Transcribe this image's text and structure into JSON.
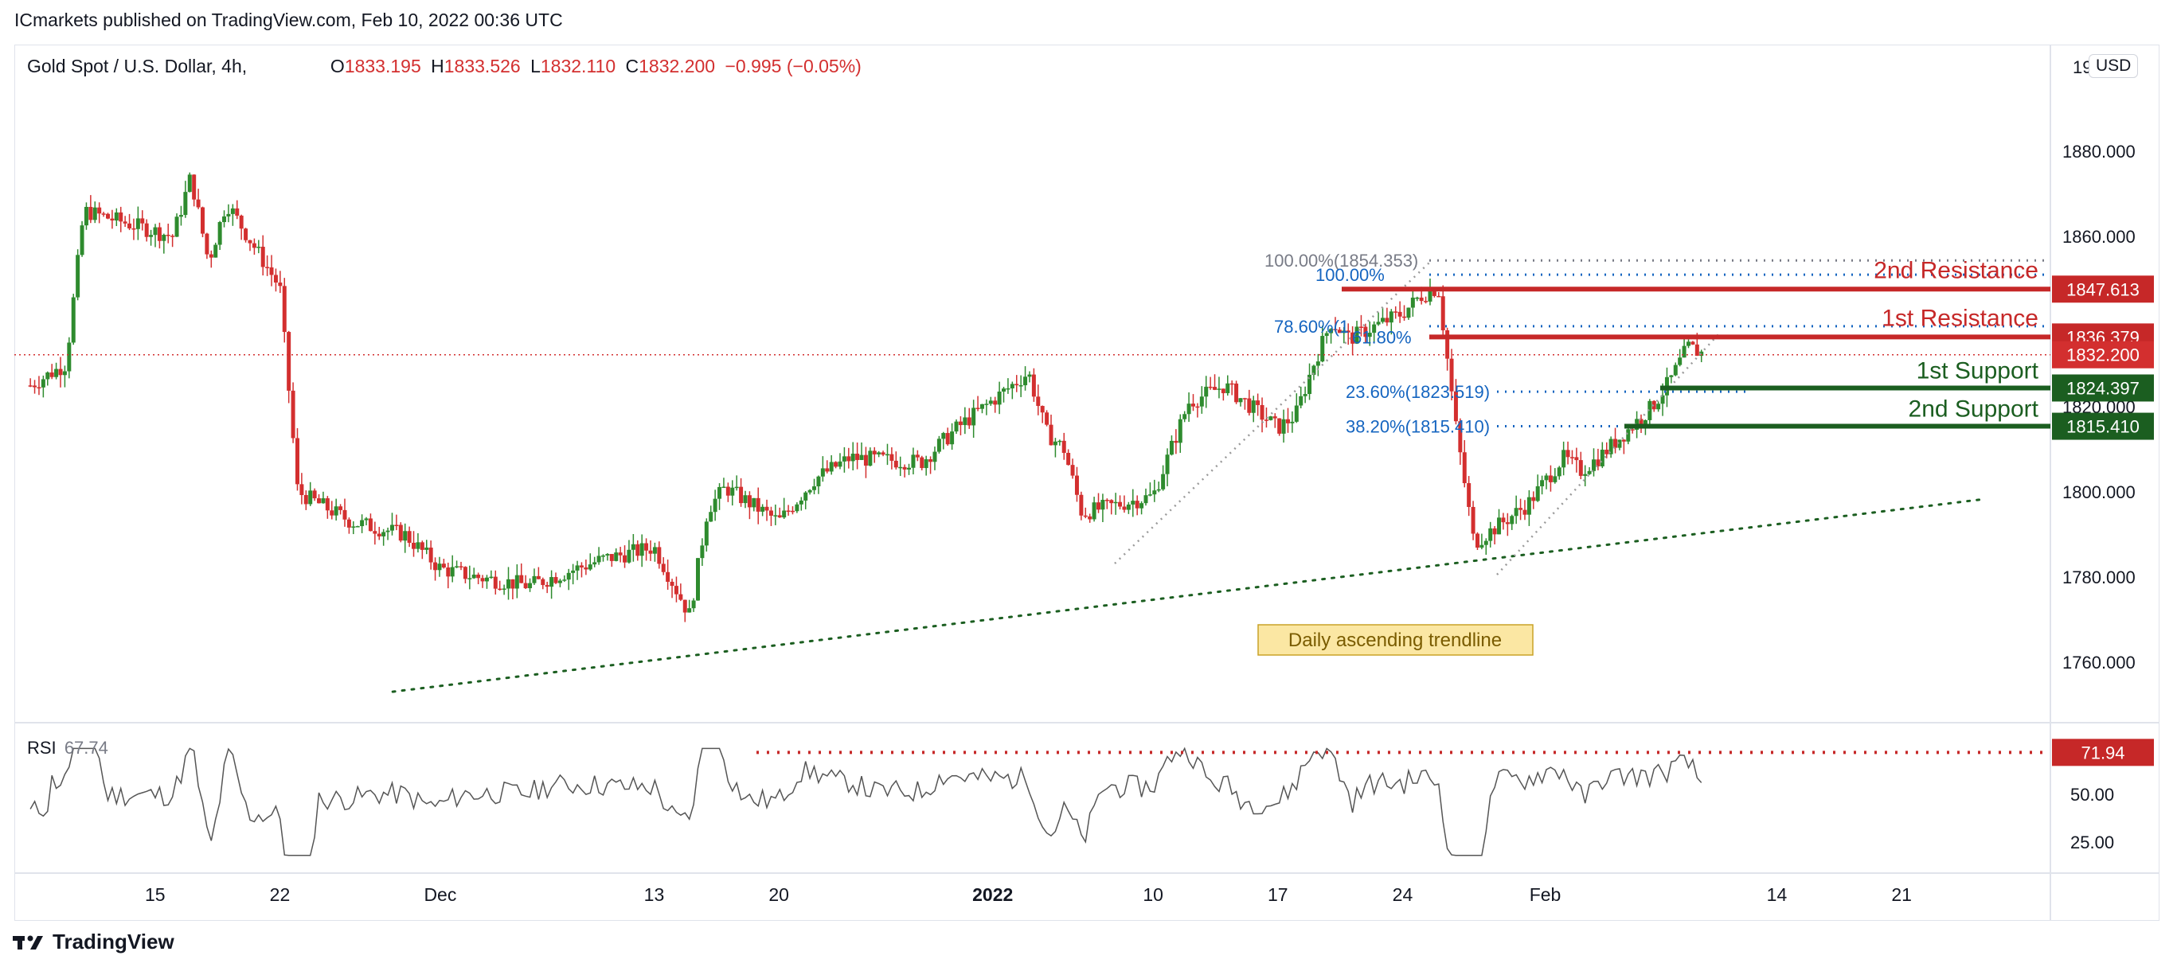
{
  "header": {
    "published": "ICmarkets published on TradingView.com, Feb 10, 2022 00:36 UTC"
  },
  "legend": {
    "symbol": "Gold Spot / U.S. Dollar, 4h,",
    "o_label": "O",
    "o_value": "1833.195",
    "h_label": "H",
    "h_value": "1833.526",
    "l_label": "L",
    "l_value": "1832.110",
    "c_label": "C",
    "c_value": "1832.200",
    "change": "−0.995 (−0.05%)"
  },
  "currency_button": "USD",
  "rsi_legend": {
    "label": "RSI",
    "value": "67.74"
  },
  "footer": {
    "brand": "TradingView"
  },
  "colors": {
    "up": "#2e8b2e",
    "down": "#d32f2f",
    "resistance": "#c62828",
    "support": "#1b5e20",
    "fib": "#1565c0",
    "fib_grey": "#787b86",
    "trend": "#1b5e20",
    "annotation_bg": "#fbe7a3",
    "annotation_border": "#c9a227"
  },
  "chart_data": {
    "type": "candlestick",
    "title": "Gold Spot / U.S. Dollar, 4h",
    "x_tick_labels": [
      "15",
      "22",
      "Dec",
      "13",
      "20",
      "2022",
      "10",
      "17",
      "24",
      "Feb",
      "14",
      "21"
    ],
    "y_tick_labels": [
      "1880.000",
      "1860.000",
      "1800.000",
      "1780.000",
      "1760.000"
    ],
    "y_top_partial_label": "19",
    "ylim": [
      1754,
      1890
    ],
    "price_path": [
      {
        "x": "Nov 8",
        "y": 1825
      },
      {
        "x": "Nov 10",
        "y": 1830
      },
      {
        "x": "Nov 11",
        "y": 1866
      },
      {
        "x": "Nov 16",
        "y": 1860
      },
      {
        "x": "Nov 17",
        "y": 1874
      },
      {
        "x": "Nov 18",
        "y": 1854
      },
      {
        "x": "Nov 19",
        "y": 1868
      },
      {
        "x": "Nov 22",
        "y": 1848
      },
      {
        "x": "Nov 23",
        "y": 1800
      },
      {
        "x": "Nov 26",
        "y": 1793
      },
      {
        "x": "Nov 29",
        "y": 1790
      },
      {
        "x": "Dec 1",
        "y": 1782
      },
      {
        "x": "Dec 3",
        "y": 1780
      },
      {
        "x": "Dec 6",
        "y": 1778
      },
      {
        "x": "Dec 8",
        "y": 1781
      },
      {
        "x": "Dec 10",
        "y": 1784
      },
      {
        "x": "Dec 13",
        "y": 1787
      },
      {
        "x": "Dec 15",
        "y": 1771
      },
      {
        "x": "Dec 16",
        "y": 1796
      },
      {
        "x": "Dec 17",
        "y": 1801
      },
      {
        "x": "Dec 20",
        "y": 1793
      },
      {
        "x": "Dec 22",
        "y": 1803
      },
      {
        "x": "Dec 24",
        "y": 1808
      },
      {
        "x": "Dec 28",
        "y": 1807
      },
      {
        "x": "Dec 30",
        "y": 1815
      },
      {
        "x": "Jan 3",
        "y": 1828
      },
      {
        "x": "Jan 4",
        "y": 1814
      },
      {
        "x": "Jan 5",
        "y": 1810
      },
      {
        "x": "Jan 6",
        "y": 1795
      },
      {
        "x": "Jan 7",
        "y": 1796
      },
      {
        "x": "Jan 10",
        "y": 1799
      },
      {
        "x": "Jan 12",
        "y": 1821
      },
      {
        "x": "Jan 14",
        "y": 1825
      },
      {
        "x": "Jan 17",
        "y": 1815
      },
      {
        "x": "Jan 18",
        "y": 1818
      },
      {
        "x": "Jan 19",
        "y": 1830
      },
      {
        "x": "Jan 20",
        "y": 1840
      },
      {
        "x": "Jan 21",
        "y": 1836
      },
      {
        "x": "Jan 24",
        "y": 1842
      },
      {
        "x": "Jan 25",
        "y": 1846
      },
      {
        "x": "Jan 26",
        "y": 1848
      },
      {
        "x": "Jan 27",
        "y": 1815
      },
      {
        "x": "Jan 28",
        "y": 1788
      },
      {
        "x": "Jan 31",
        "y": 1797
      },
      {
        "x": "Feb 2",
        "y": 1808
      },
      {
        "x": "Feb 3",
        "y": 1805
      },
      {
        "x": "Feb 4",
        "y": 1808
      },
      {
        "x": "Feb 7",
        "y": 1820
      },
      {
        "x": "Feb 8",
        "y": 1826
      },
      {
        "x": "Feb 9",
        "y": 1834
      },
      {
        "x": "Feb 10",
        "y": 1832.2
      }
    ],
    "levels": [
      {
        "name": "2nd Resistance",
        "price": 1847.613,
        "label": "1847.613",
        "kind": "resistance"
      },
      {
        "name": "1st Resistance",
        "price": 1836.379,
        "label": "1836.379",
        "kind": "resistance"
      },
      {
        "name": "current",
        "price": 1832.2,
        "label": "1832.200",
        "kind": "current"
      },
      {
        "name": "1st Support",
        "price": 1824.397,
        "label": "1824.397",
        "kind": "support"
      },
      {
        "name": "2nd Support",
        "price": 1815.41,
        "label": "1815.410",
        "kind": "support"
      }
    ],
    "hidden_axis_label": "1820.000",
    "fib_labels": [
      {
        "text": "100.00%(1854.353)",
        "price": 1854.353,
        "style": "grey"
      },
      {
        "text": "100.00%",
        "price": 1851,
        "style": "blue"
      },
      {
        "text": "78.60%(1",
        "price": 1838.9,
        "style": "blue"
      },
      {
        "text": "61.80%",
        "price": 1836.4,
        "style": "blue"
      },
      {
        "text": "23.60%(1823.519)",
        "price": 1823.519,
        "style": "blue"
      },
      {
        "text": "38.20%(1815.410)",
        "price": 1815.41,
        "style": "blue"
      }
    ],
    "trendline": {
      "label": "Daily ascending trendline",
      "from": {
        "x": "Nov 29",
        "y": 1754
      },
      "to": {
        "x": "Feb 21",
        "y": 1798.7
      }
    },
    "rsi": {
      "label": "RSI",
      "current": 67.74,
      "y_tick_labels": [
        "50.00",
        "25.00"
      ],
      "level": {
        "value": 71.94,
        "label": "71.94"
      },
      "ylim": [
        0,
        90
      ]
    }
  }
}
